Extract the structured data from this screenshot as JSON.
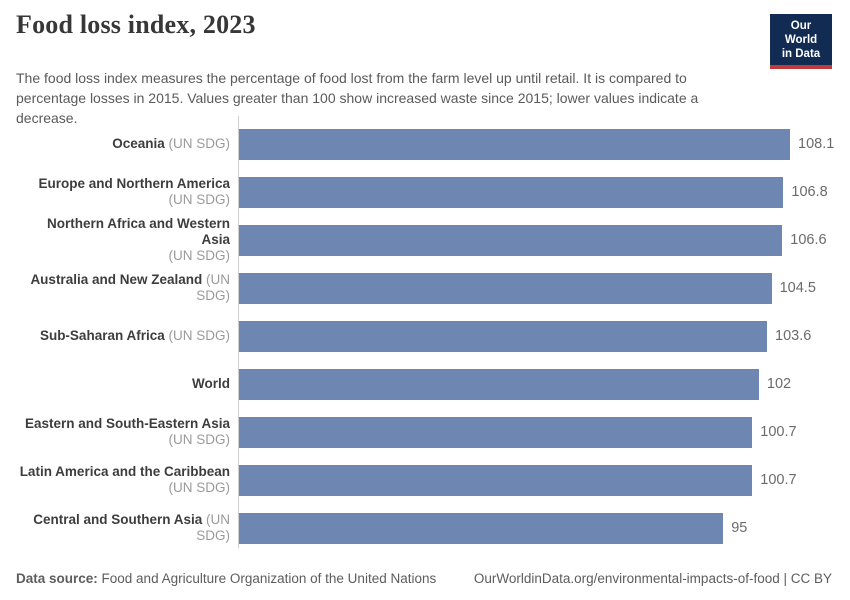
{
  "header": {
    "title": "Food loss index, 2023",
    "subtitle": "The food loss index measures the percentage of food lost from the farm level up until retail. It is compared to percentage losses in 2015. Values greater than 100 show increased waste since 2015; lower values indicate a decrease.",
    "logo": {
      "line1": "Our World",
      "line2": "in Data"
    }
  },
  "colors": {
    "bar": "#6e87b2",
    "logo_bg": "#122b52",
    "logo_underline": "#bf3a38",
    "axis_line": "#cfcfcf",
    "title_text": "#373737",
    "subtitle_text": "#5a5a5a"
  },
  "chart_data": {
    "type": "bar",
    "orientation": "horizontal",
    "title": "Food loss index, 2023",
    "categories": [
      "Oceania (UN SDG)",
      "Europe and Northern America (UN SDG)",
      "Northern Africa and Western Asia (UN SDG)",
      "Australia and New Zealand (UN SDG)",
      "Sub-Saharan Africa (UN SDG)",
      "World",
      "Eastern and South-Eastern Asia (UN SDG)",
      "Latin America and the Caribbean (UN SDG)",
      "Central and Southern Asia (UN SDG)"
    ],
    "values": [
      108.1,
      106.8,
      106.6,
      104.5,
      103.6,
      102,
      100.7,
      100.7,
      95
    ],
    "value_labels": [
      "108.1",
      "106.8",
      "106.6",
      "104.5",
      "103.6",
      "102",
      "100.7",
      "100.7",
      "95"
    ],
    "xlabel": "",
    "ylabel": "",
    "xlim": [
      0,
      110
    ],
    "grid": false,
    "legend": false
  },
  "rows": [
    {
      "name": "Oceania",
      "qualifier": "(UN SDG)",
      "qualifier_block": false,
      "value": 108.1,
      "label": "108.1"
    },
    {
      "name": "Europe and Northern America",
      "qualifier": "(UN SDG)",
      "qualifier_block": true,
      "value": 106.8,
      "label": "106.8"
    },
    {
      "name": "Northern Africa and Western Asia",
      "qualifier": "(UN SDG)",
      "qualifier_block": true,
      "value": 106.6,
      "label": "106.6"
    },
    {
      "name": "Australia and New Zealand",
      "qualifier": "(UN SDG)",
      "qualifier_block": false,
      "value": 104.5,
      "label": "104.5"
    },
    {
      "name": "Sub-Saharan Africa",
      "qualifier": "(UN SDG)",
      "qualifier_block": false,
      "value": 103.6,
      "label": "103.6"
    },
    {
      "name": "World",
      "qualifier": "",
      "qualifier_block": false,
      "value": 102,
      "label": "102"
    },
    {
      "name": "Eastern and South-Eastern Asia",
      "qualifier": "(UN SDG)",
      "qualifier_block": true,
      "value": 100.7,
      "label": "100.7"
    },
    {
      "name": "Latin America and the Caribbean",
      "qualifier": "(UN SDG)",
      "qualifier_block": true,
      "value": 100.7,
      "label": "100.7"
    },
    {
      "name": "Central and Southern Asia",
      "qualifier": "(UN SDG)",
      "qualifier_block": false,
      "value": 95,
      "label": "95"
    }
  ],
  "footer": {
    "source_label": "Data source:",
    "source_text": " Food and Agriculture Organization of the United Nations",
    "link": "OurWorldinData.org/environmental-impacts-of-food | CC BY"
  }
}
